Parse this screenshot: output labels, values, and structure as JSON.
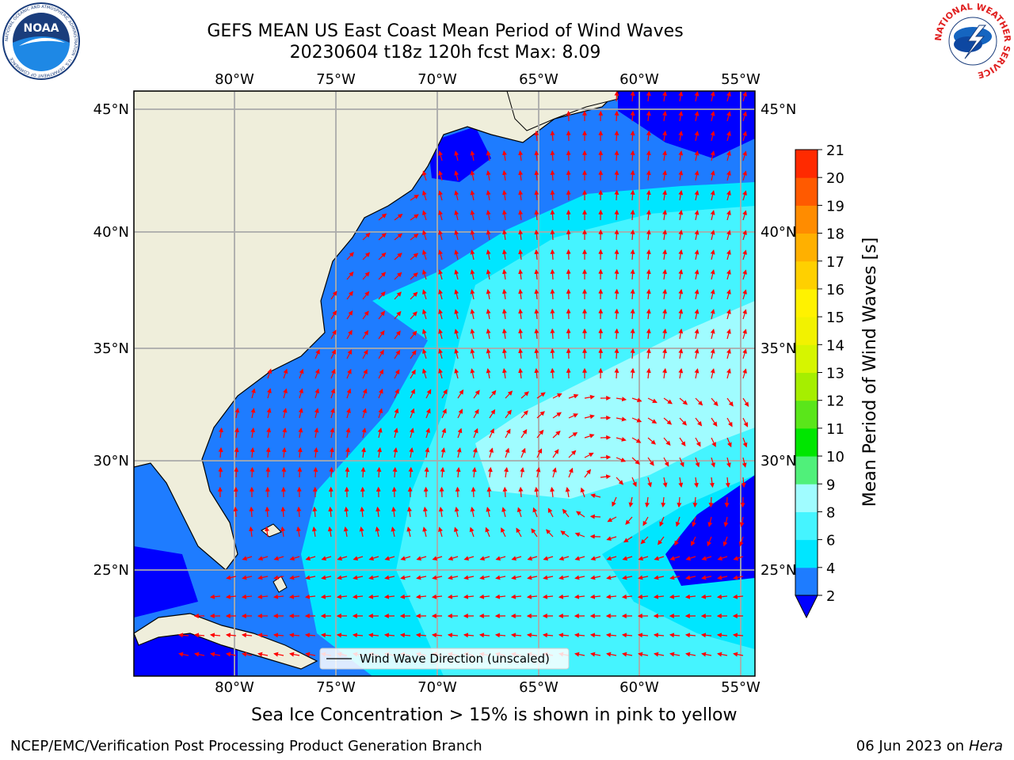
{
  "title_line1": "GEFS MEAN US East Coast Mean Period of Wind Waves",
  "title_line2": "20230604 t18z 120h fcst   Max: 8.09",
  "logos": {
    "left": {
      "name": "noaa-logo",
      "text": "NOAA",
      "ring_text": "NATIONAL OCEANIC AND ATMOSPHERIC ADMINISTRATION · U.S. DEPARTMENT OF COMMERCE"
    },
    "right": {
      "name": "nws-logo",
      "ring_text": "NATIONAL WEATHER SERVICE"
    }
  },
  "map": {
    "lon_ticks": [
      "80°W",
      "75°W",
      "70°W",
      "65°W",
      "60°W",
      "55°W"
    ],
    "lat_ticks": [
      "45°N",
      "40°N",
      "35°N",
      "30°N",
      "25°N"
    ],
    "legend_label": "Wind Wave Direction (unscaled)",
    "arrow_color": "#ff0000",
    "land_color": "#efeedb"
  },
  "colorbar": {
    "label": "Mean Period of Wind Waves [s]",
    "ticks": [
      "2",
      "4",
      "6",
      "8",
      "9",
      "10",
      "11",
      "12",
      "13",
      "14",
      "15",
      "16",
      "17",
      "18",
      "19",
      "20",
      "21"
    ],
    "colors": [
      "#1e7cff",
      "#00e6ff",
      "#45f4ff",
      "#a0fcff",
      "#50f07a",
      "#00e600",
      "#5ae61a",
      "#a6ee00",
      "#d6f500",
      "#f2f200",
      "#fff200",
      "#ffd000",
      "#ffb000",
      "#ff8c00",
      "#ff5a00",
      "#ff2a00"
    ],
    "extend_color": "#0000ff"
  },
  "footer": {
    "ice_note": "Sea Ice Concentration > 15% is shown in pink to yellow",
    "org": "NCEP/EMC/Verification Post Processing Product Generation Branch",
    "date": "06 Jun 2023 on",
    "host": "Hera"
  }
}
